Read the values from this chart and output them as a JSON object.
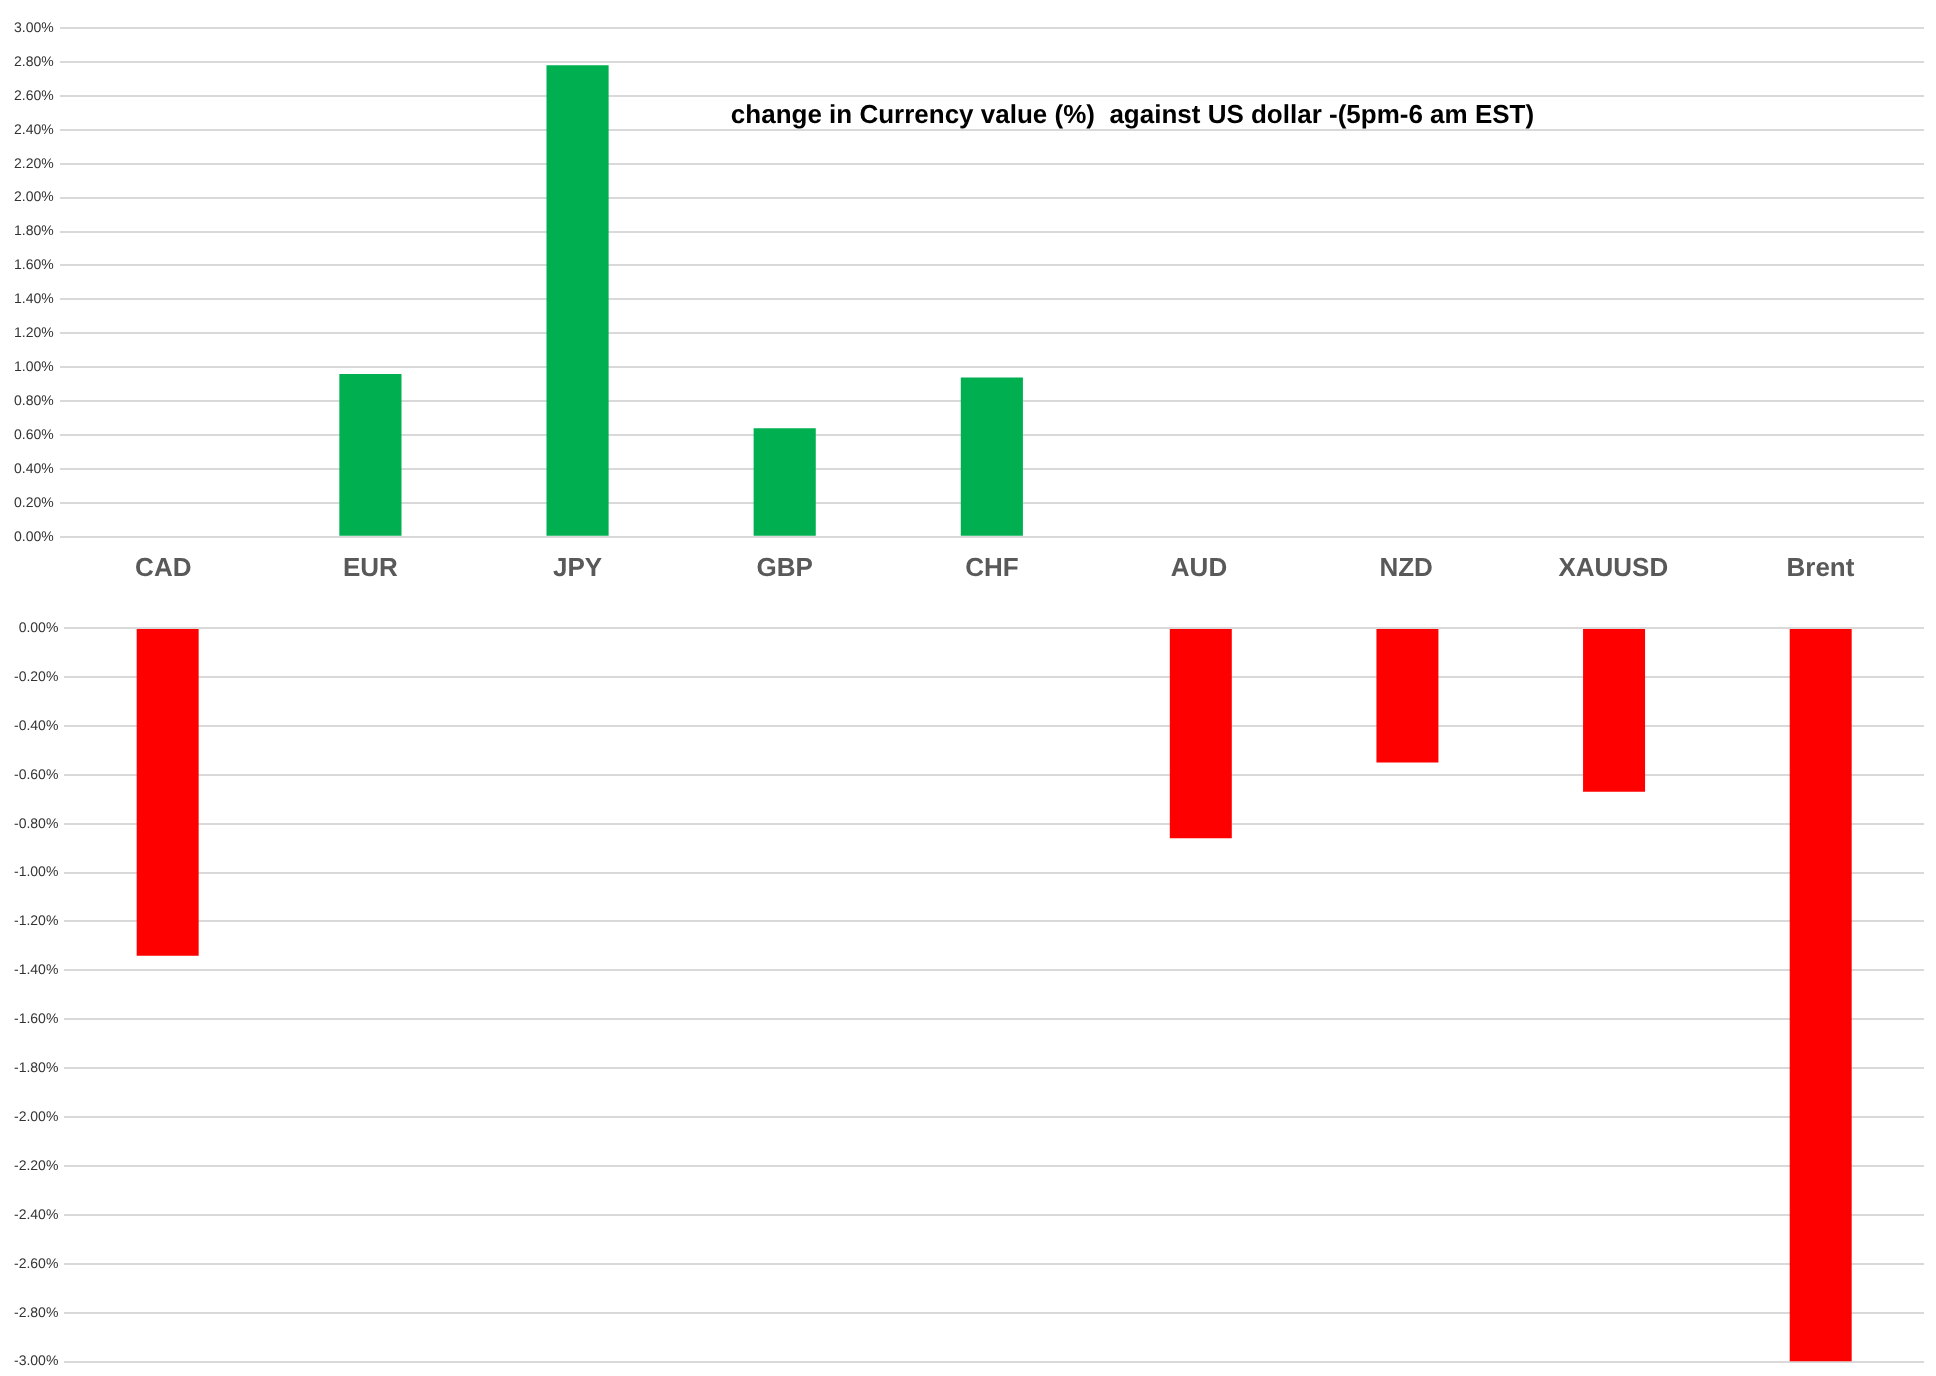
{
  "chart_data": [
    {
      "type": "bar",
      "title": "change in Currency value (%)  against US dollar -(5pm-6 am EST)",
      "categories": [
        "CAD",
        "EUR",
        "JPY",
        "GBP",
        "CHF",
        "AUD",
        "NZD",
        "XAUUSD",
        "Brent"
      ],
      "values": [
        null,
        0.96,
        2.78,
        0.64,
        0.94,
        null,
        null,
        null,
        null
      ],
      "color": "#00b050",
      "ylim": [
        0,
        3
      ],
      "yticks": [
        {
          "value": 0,
          "label": "0.00%"
        },
        {
          "value": 0.2,
          "label": "0.20%"
        },
        {
          "value": 0.4,
          "label": "0.40%"
        },
        {
          "value": 0.6,
          "label": "0.60%"
        },
        {
          "value": 0.8,
          "label": "0.80%"
        },
        {
          "value": 1,
          "label": "1.00%"
        },
        {
          "value": 1.2,
          "label": "1.20%"
        },
        {
          "value": 1.4,
          "label": "1.40%"
        },
        {
          "value": 1.6,
          "label": "1.60%"
        },
        {
          "value": 1.8,
          "label": "1.80%"
        },
        {
          "value": 2,
          "label": "2.00%"
        },
        {
          "value": 2.2,
          "label": "2.20%"
        },
        {
          "value": 2.4,
          "label": "2.40%"
        },
        {
          "value": 2.6,
          "label": "2.60%"
        },
        {
          "value": 2.8,
          "label": "2.80%"
        },
        {
          "value": 3,
          "label": "3.00%"
        }
      ],
      "grid": "y"
    },
    {
      "type": "bar",
      "categories": [
        null,
        null,
        null,
        null,
        null,
        null,
        null,
        null,
        null
      ],
      "values": [
        -1.34,
        null,
        null,
        null,
        null,
        -0.86,
        -0.55,
        -0.67,
        -3.0
      ],
      "color": "#ff0000",
      "ylim": [
        -3,
        0
      ],
      "yticks": [
        {
          "value": 0,
          "label": "0.00%"
        },
        {
          "value": -0.2,
          "label": "-0.20%"
        },
        {
          "value": -0.4,
          "label": "-0.40%"
        },
        {
          "value": -0.6,
          "label": "-0.60%"
        },
        {
          "value": -0.8,
          "label": "-0.80%"
        },
        {
          "value": -1,
          "label": "-1.00%"
        },
        {
          "value": -1.2,
          "label": "-1.20%"
        },
        {
          "value": -1.4,
          "label": "-1.40%"
        },
        {
          "value": -1.6,
          "label": "-1.60%"
        },
        {
          "value": -1.8,
          "label": "-1.80%"
        },
        {
          "value": -2,
          "label": "-2.00%"
        },
        {
          "value": -2.2,
          "label": "-2.20%"
        },
        {
          "value": -2.4,
          "label": "-2.40%"
        },
        {
          "value": -2.6,
          "label": "-2.60%"
        },
        {
          "value": -2.8,
          "label": "-2.80%"
        },
        {
          "value": -3,
          "label": "-3.00%"
        }
      ],
      "grid": "y",
      "tick_labels": "y"
    }
  ]
}
